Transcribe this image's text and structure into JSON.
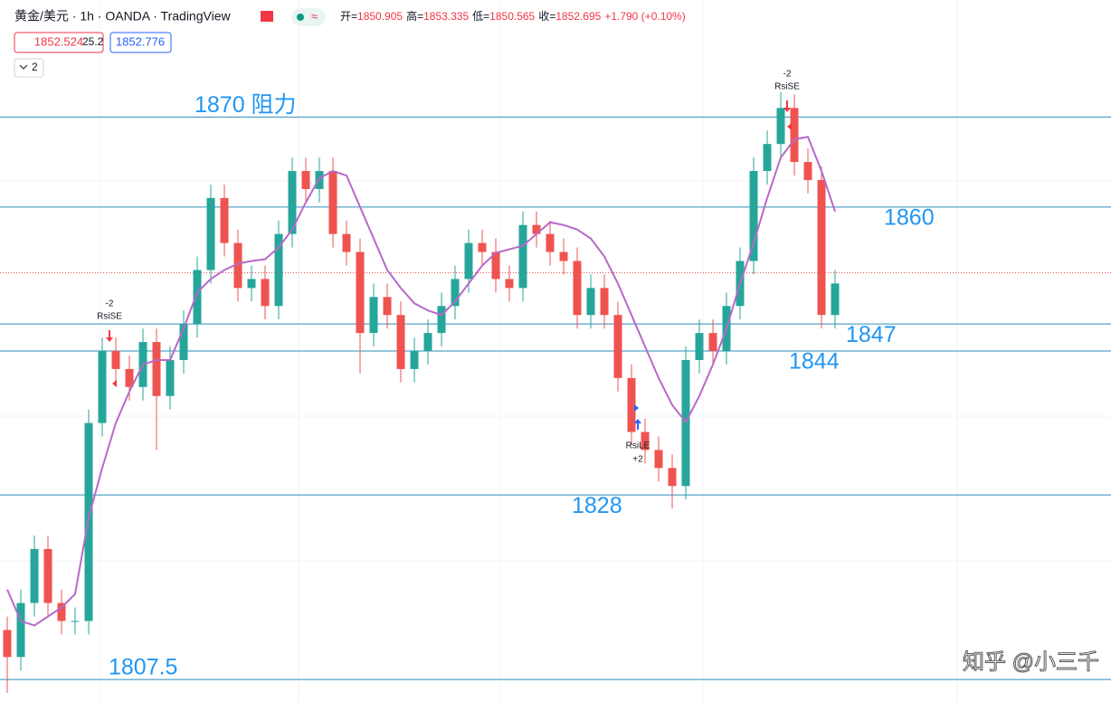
{
  "header": {
    "symbol": "黄金/美元 · 1h · OANDA · TradingView",
    "ohlc": [
      {
        "label": "开=",
        "value": 1850.905
      },
      {
        "label": "高=",
        "value": 1853.335
      },
      {
        "label": "低=",
        "value": 1850.565
      },
      {
        "label": "收=",
        "value": 1852.695
      }
    ],
    "change": "+1.790 (+0.10%)",
    "bid": 1852.524,
    "spread": 25.2,
    "ask": 1852.776,
    "indicators": 2
  },
  "chart_data": {
    "type": "candlestick",
    "open": [
      1813,
      1810,
      1816,
      1822,
      1816,
      1814,
      1814,
      1836,
      1844,
      1842,
      1840,
      1845,
      1839,
      1843,
      1847,
      1853,
      1861,
      1856,
      1851,
      1852,
      1849,
      1857,
      1864,
      1862,
      1864,
      1857,
      1855,
      1846,
      1850,
      1848,
      1842,
      1844,
      1846,
      1849,
      1852,
      1856,
      1855,
      1852,
      1851,
      1858,
      1857,
      1855,
      1854,
      1848,
      1851,
      1848,
      1841,
      1835,
      1833,
      1831,
      1829,
      1843,
      1846,
      1844,
      1849,
      1854,
      1864,
      1867,
      1871,
      1865,
      1863,
      1848
    ],
    "high": [
      1814.5,
      1817.5,
      1823.5,
      1823.5,
      1817.5,
      1815.5,
      1837.5,
      1845.5,
      1845.5,
      1843.5,
      1846.5,
      1846.5,
      1844.5,
      1848.5,
      1854.5,
      1862.5,
      1862.5,
      1857.5,
      1853.5,
      1853.5,
      1858.5,
      1865.5,
      1865.5,
      1865.5,
      1865.5,
      1858.5,
      1856.5,
      1851.5,
      1851.5,
      1849.5,
      1845.5,
      1847.5,
      1850.5,
      1853.5,
      1857.5,
      1857.5,
      1856.5,
      1853.5,
      1859.5,
      1859.5,
      1858.5,
      1856.5,
      1855.5,
      1852.5,
      1852.5,
      1849.5,
      1842.5,
      1836.5,
      1834.5,
      1832.5,
      1844.5,
      1847.5,
      1847.5,
      1850.5,
      1855.5,
      1865.5,
      1868.5,
      1872.8,
      1872.5,
      1866.5,
      1864.5,
      1853
    ],
    "low": [
      1806,
      1808.5,
      1814.5,
      1814.5,
      1812.5,
      1812.5,
      1812.5,
      1834.5,
      1840.5,
      1838.5,
      1838.5,
      1833,
      1837.5,
      1841.5,
      1845.5,
      1851.5,
      1854.5,
      1849.5,
      1849.5,
      1847.5,
      1847.5,
      1855.5,
      1860.5,
      1860.5,
      1855.5,
      1853.5,
      1841.5,
      1844.5,
      1846.5,
      1840.5,
      1840.5,
      1842.5,
      1844.5,
      1847.5,
      1850.5,
      1853.5,
      1850.5,
      1849.5,
      1849.5,
      1855.5,
      1853.5,
      1852.5,
      1846.5,
      1846.5,
      1846.5,
      1839.5,
      1833.5,
      1831.5,
      1829.5,
      1826.5,
      1827.5,
      1841.5,
      1842.5,
      1842.5,
      1847.5,
      1852.5,
      1862.5,
      1865.5,
      1863.5,
      1861.5,
      1846.5,
      1846.5
    ],
    "close": [
      1810,
      1816,
      1822,
      1816,
      1814,
      1814,
      1836,
      1844,
      1842,
      1840,
      1845,
      1839,
      1843,
      1847,
      1853,
      1861,
      1856,
      1851,
      1852,
      1849,
      1857,
      1864,
      1862,
      1864,
      1857,
      1855,
      1846,
      1850,
      1848,
      1842,
      1844,
      1846,
      1849,
      1852,
      1856,
      1855,
      1852,
      1851,
      1858,
      1857,
      1855,
      1854,
      1848,
      1851,
      1848,
      1841,
      1835,
      1833,
      1831,
      1829,
      1843,
      1846,
      1844,
      1849,
      1854,
      1864,
      1867,
      1871,
      1865,
      1863,
      1848,
      1851.5
    ],
    "ma": [
      1817.5,
      1814,
      1813.5,
      1814.5,
      1815.5,
      1817,
      1825.5,
      1831,
      1836,
      1839.5,
      1842.5,
      1843,
      1843,
      1846.5,
      1850.5,
      1852,
      1853,
      1853.7,
      1854,
      1854.2,
      1855.5,
      1857.5,
      1860.5,
      1863.2,
      1864,
      1863.5,
      1860,
      1856.5,
      1853,
      1851,
      1849.3,
      1848.5,
      1848,
      1849.5,
      1851.5,
      1853.5,
      1854.9,
      1855.3,
      1855.7,
      1857,
      1858.3,
      1858,
      1857.5,
      1856.5,
      1854.5,
      1851.5,
      1848,
      1844.5,
      1841,
      1838,
      1836.1,
      1839,
      1842.5,
      1846.5,
      1851.5,
      1856,
      1861,
      1865.5,
      1867.5,
      1867.8,
      1864,
      1859.5
    ],
    "up_color": "#26a69a",
    "down_color": "#ef5350",
    "ma_color": "#b868c8",
    "ylim": [
      1805,
      1883
    ],
    "levels": [
      {
        "value": 1870,
        "label": "1870 阻力"
      },
      1860,
      1847,
      1844,
      1828,
      1807.5
    ],
    "level_color": "#2f8dbf",
    "signals": [
      {
        "qty": -2,
        "name": "RsiSE"
      },
      {
        "qty": "+2",
        "name": "RsiLE"
      },
      {
        "qty": -2,
        "name": "RsiSE"
      }
    ]
  },
  "watermark": "知乎 @小三千"
}
